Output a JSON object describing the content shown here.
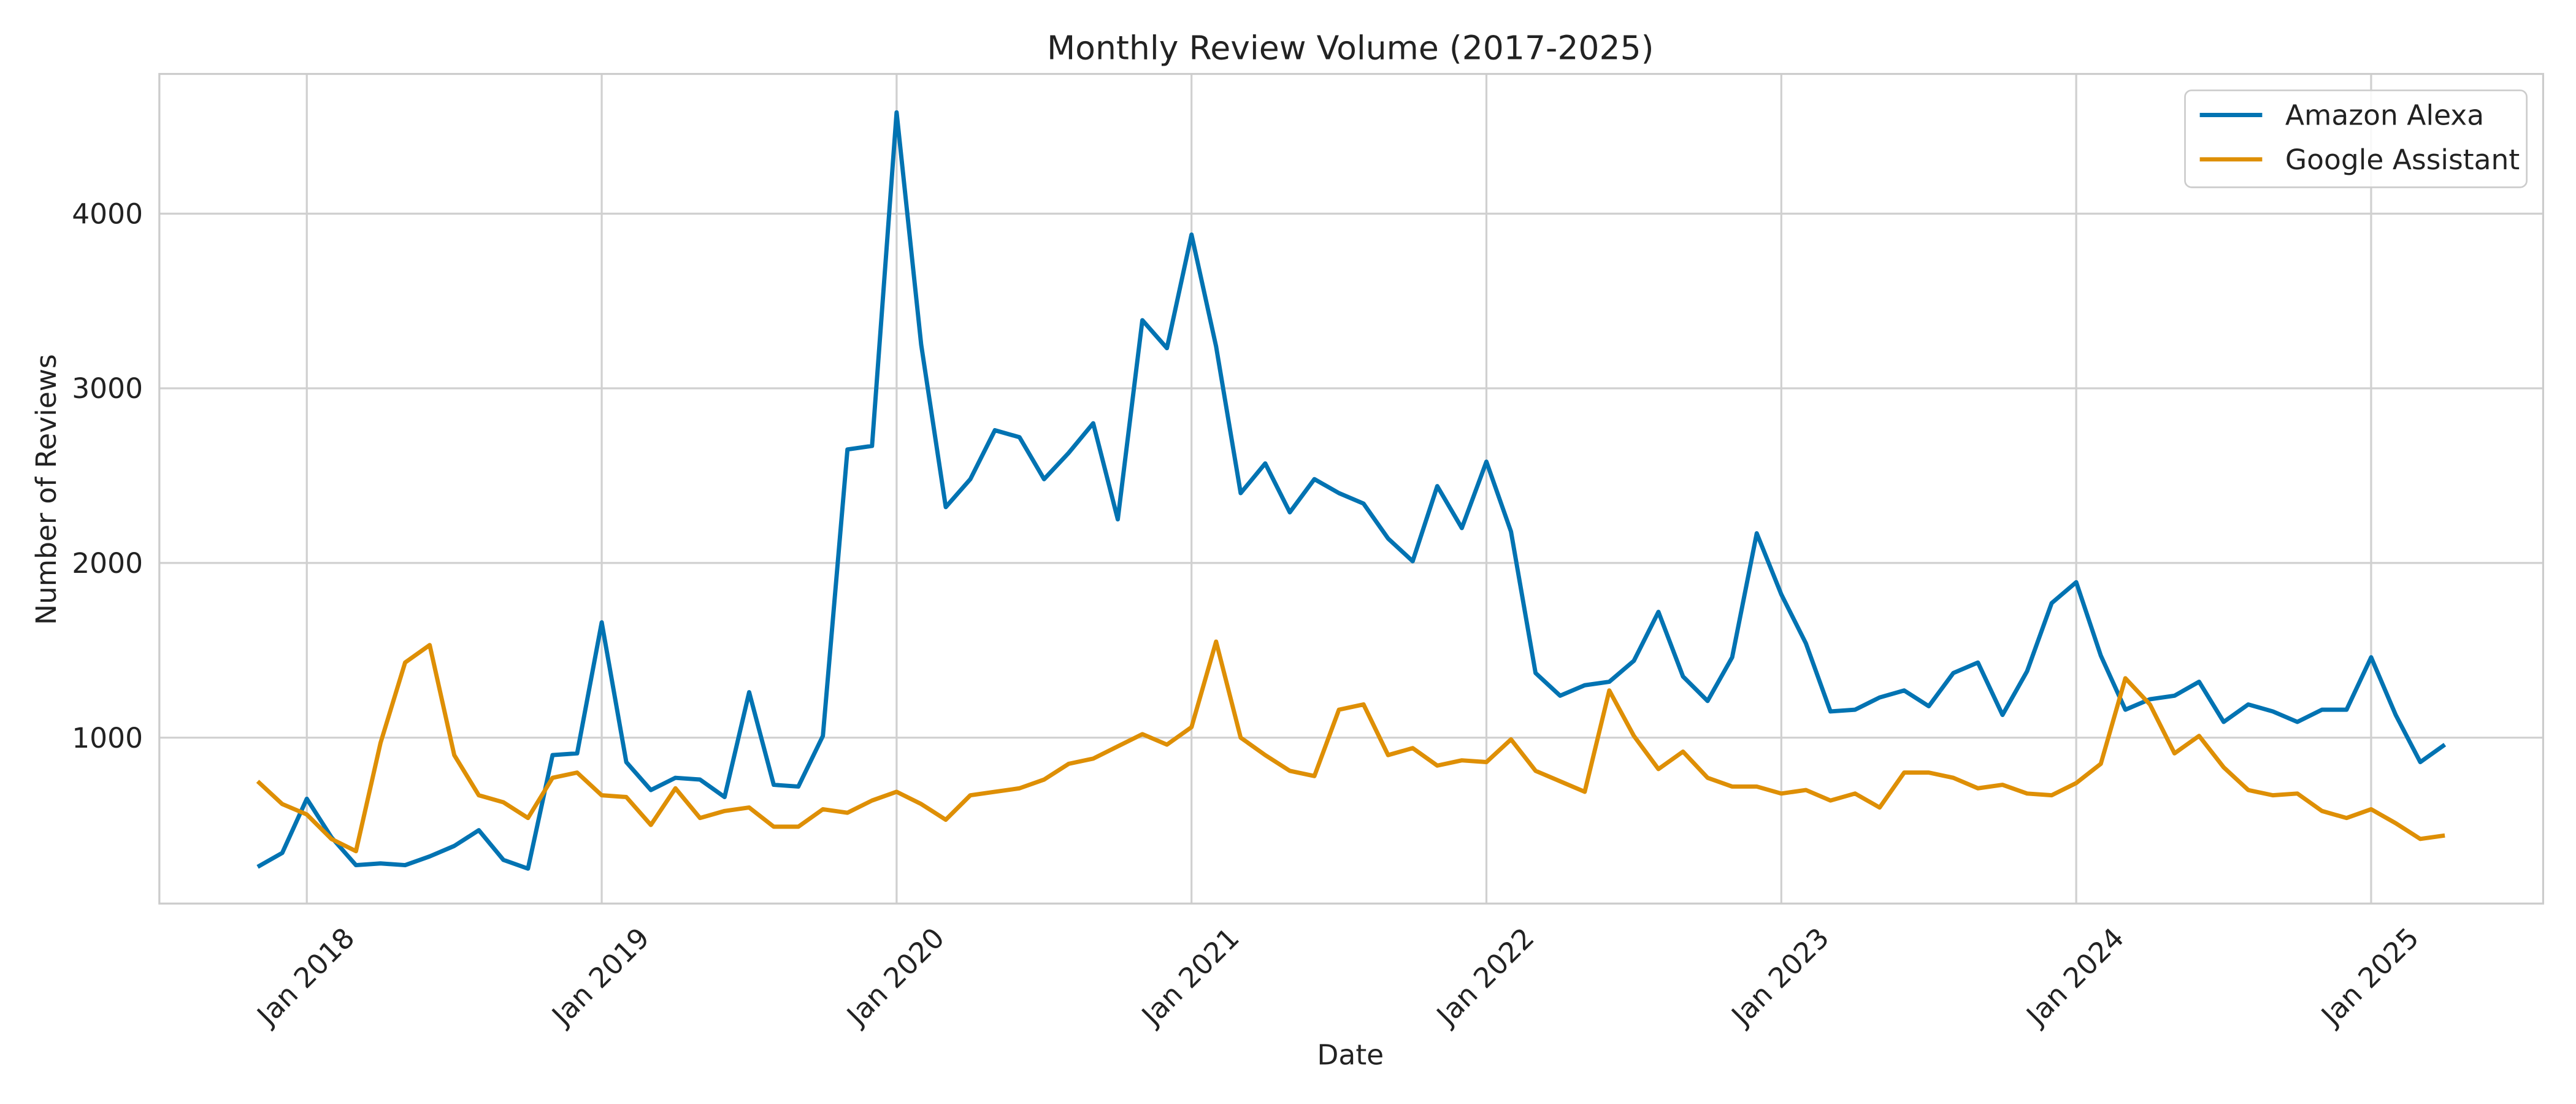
{
  "chart_data": {
    "type": "line",
    "title": "Monthly Review Volume (2017-2025)",
    "xlabel": "Date",
    "ylabel": "Number of Reviews",
    "x": [
      "2017-11",
      "2017-12",
      "2018-01",
      "2018-02",
      "2018-03",
      "2018-04",
      "2018-05",
      "2018-06",
      "2018-07",
      "2018-08",
      "2018-09",
      "2018-10",
      "2018-11",
      "2018-12",
      "2019-01",
      "2019-02",
      "2019-03",
      "2019-04",
      "2019-05",
      "2019-06",
      "2019-07",
      "2019-08",
      "2019-09",
      "2019-10",
      "2019-11",
      "2019-12",
      "2020-01",
      "2020-02",
      "2020-03",
      "2020-04",
      "2020-05",
      "2020-06",
      "2020-07",
      "2020-08",
      "2020-09",
      "2020-10",
      "2020-11",
      "2020-12",
      "2021-01",
      "2021-02",
      "2021-03",
      "2021-04",
      "2021-05",
      "2021-06",
      "2021-07",
      "2021-08",
      "2021-09",
      "2021-10",
      "2021-11",
      "2021-12",
      "2022-01",
      "2022-02",
      "2022-03",
      "2022-04",
      "2022-05",
      "2022-06",
      "2022-07",
      "2022-08",
      "2022-09",
      "2022-10",
      "2022-11",
      "2022-12",
      "2023-01",
      "2023-02",
      "2023-03",
      "2023-04",
      "2023-05",
      "2023-06",
      "2023-07",
      "2023-08",
      "2023-09",
      "2023-10",
      "2023-11",
      "2023-12",
      "2024-01",
      "2024-02",
      "2024-03",
      "2024-04",
      "2024-05",
      "2024-06",
      "2024-07",
      "2024-08",
      "2024-09",
      "2024-10",
      "2024-11",
      "2024-12",
      "2025-01",
      "2025-02",
      "2025-03",
      "2025-04"
    ],
    "series": [
      {
        "name": "Amazon Alexa",
        "color": "#0173b2",
        "values": [
          260,
          340,
          650,
          430,
          270,
          280,
          270,
          320,
          380,
          470,
          300,
          250,
          900,
          910,
          1660,
          860,
          700,
          770,
          760,
          660,
          1260,
          730,
          720,
          1010,
          2650,
          2670,
          4580,
          3250,
          2320,
          2480,
          2760,
          2720,
          2480,
          2630,
          2800,
          2250,
          3390,
          3230,
          3880,
          3240,
          2400,
          2570,
          2290,
          2480,
          2400,
          2340,
          2140,
          2010,
          2440,
          2200,
          2580,
          2180,
          1370,
          1240,
          1300,
          1320,
          1440,
          1720,
          1350,
          1210,
          1460,
          2170,
          1820,
          1540,
          1150,
          1160,
          1230,
          1270,
          1180,
          1370,
          1430,
          1130,
          1380,
          1770,
          1890,
          1470,
          1160,
          1220,
          1240,
          1320,
          1090,
          1190,
          1150,
          1090,
          1160,
          1160,
          1460,
          1130,
          860,
          960
        ]
      },
      {
        "name": "Google Assistant",
        "color": "#de8f05",
        "values": [
          750,
          620,
          560,
          420,
          350,
          970,
          1430,
          1530,
          900,
          670,
          630,
          540,
          770,
          800,
          670,
          660,
          500,
          710,
          540,
          580,
          600,
          490,
          490,
          590,
          570,
          640,
          690,
          620,
          530,
          670,
          690,
          710,
          760,
          850,
          880,
          950,
          1020,
          960,
          1060,
          1550,
          1000,
          900,
          810,
          780,
          1160,
          1190,
          900,
          940,
          840,
          870,
          860,
          990,
          810,
          750,
          690,
          1270,
          1010,
          820,
          920,
          770,
          720,
          720,
          680,
          700,
          640,
          680,
          600,
          800,
          800,
          770,
          710,
          730,
          680,
          670,
          740,
          850,
          1340,
          1190,
          910,
          1010,
          830,
          700,
          670,
          680,
          580,
          540,
          590,
          510,
          420,
          440
        ]
      }
    ],
    "xlim": [
      "2017-07",
      "2025-08"
    ],
    "xticks": [
      {
        "value": "2018-01",
        "label": "Jan 2018"
      },
      {
        "value": "2019-01",
        "label": "Jan 2019"
      },
      {
        "value": "2020-01",
        "label": "Jan 2020"
      },
      {
        "value": "2021-01",
        "label": "Jan 2021"
      },
      {
        "value": "2022-01",
        "label": "Jan 2022"
      },
      {
        "value": "2023-01",
        "label": "Jan 2023"
      },
      {
        "value": "2024-01",
        "label": "Jan 2024"
      },
      {
        "value": "2025-01",
        "label": "Jan 2025"
      }
    ],
    "ylim": [
      50,
      4800
    ],
    "yticks": [
      1000,
      2000,
      3000,
      4000
    ],
    "grid": true,
    "legend": "upper right"
  }
}
